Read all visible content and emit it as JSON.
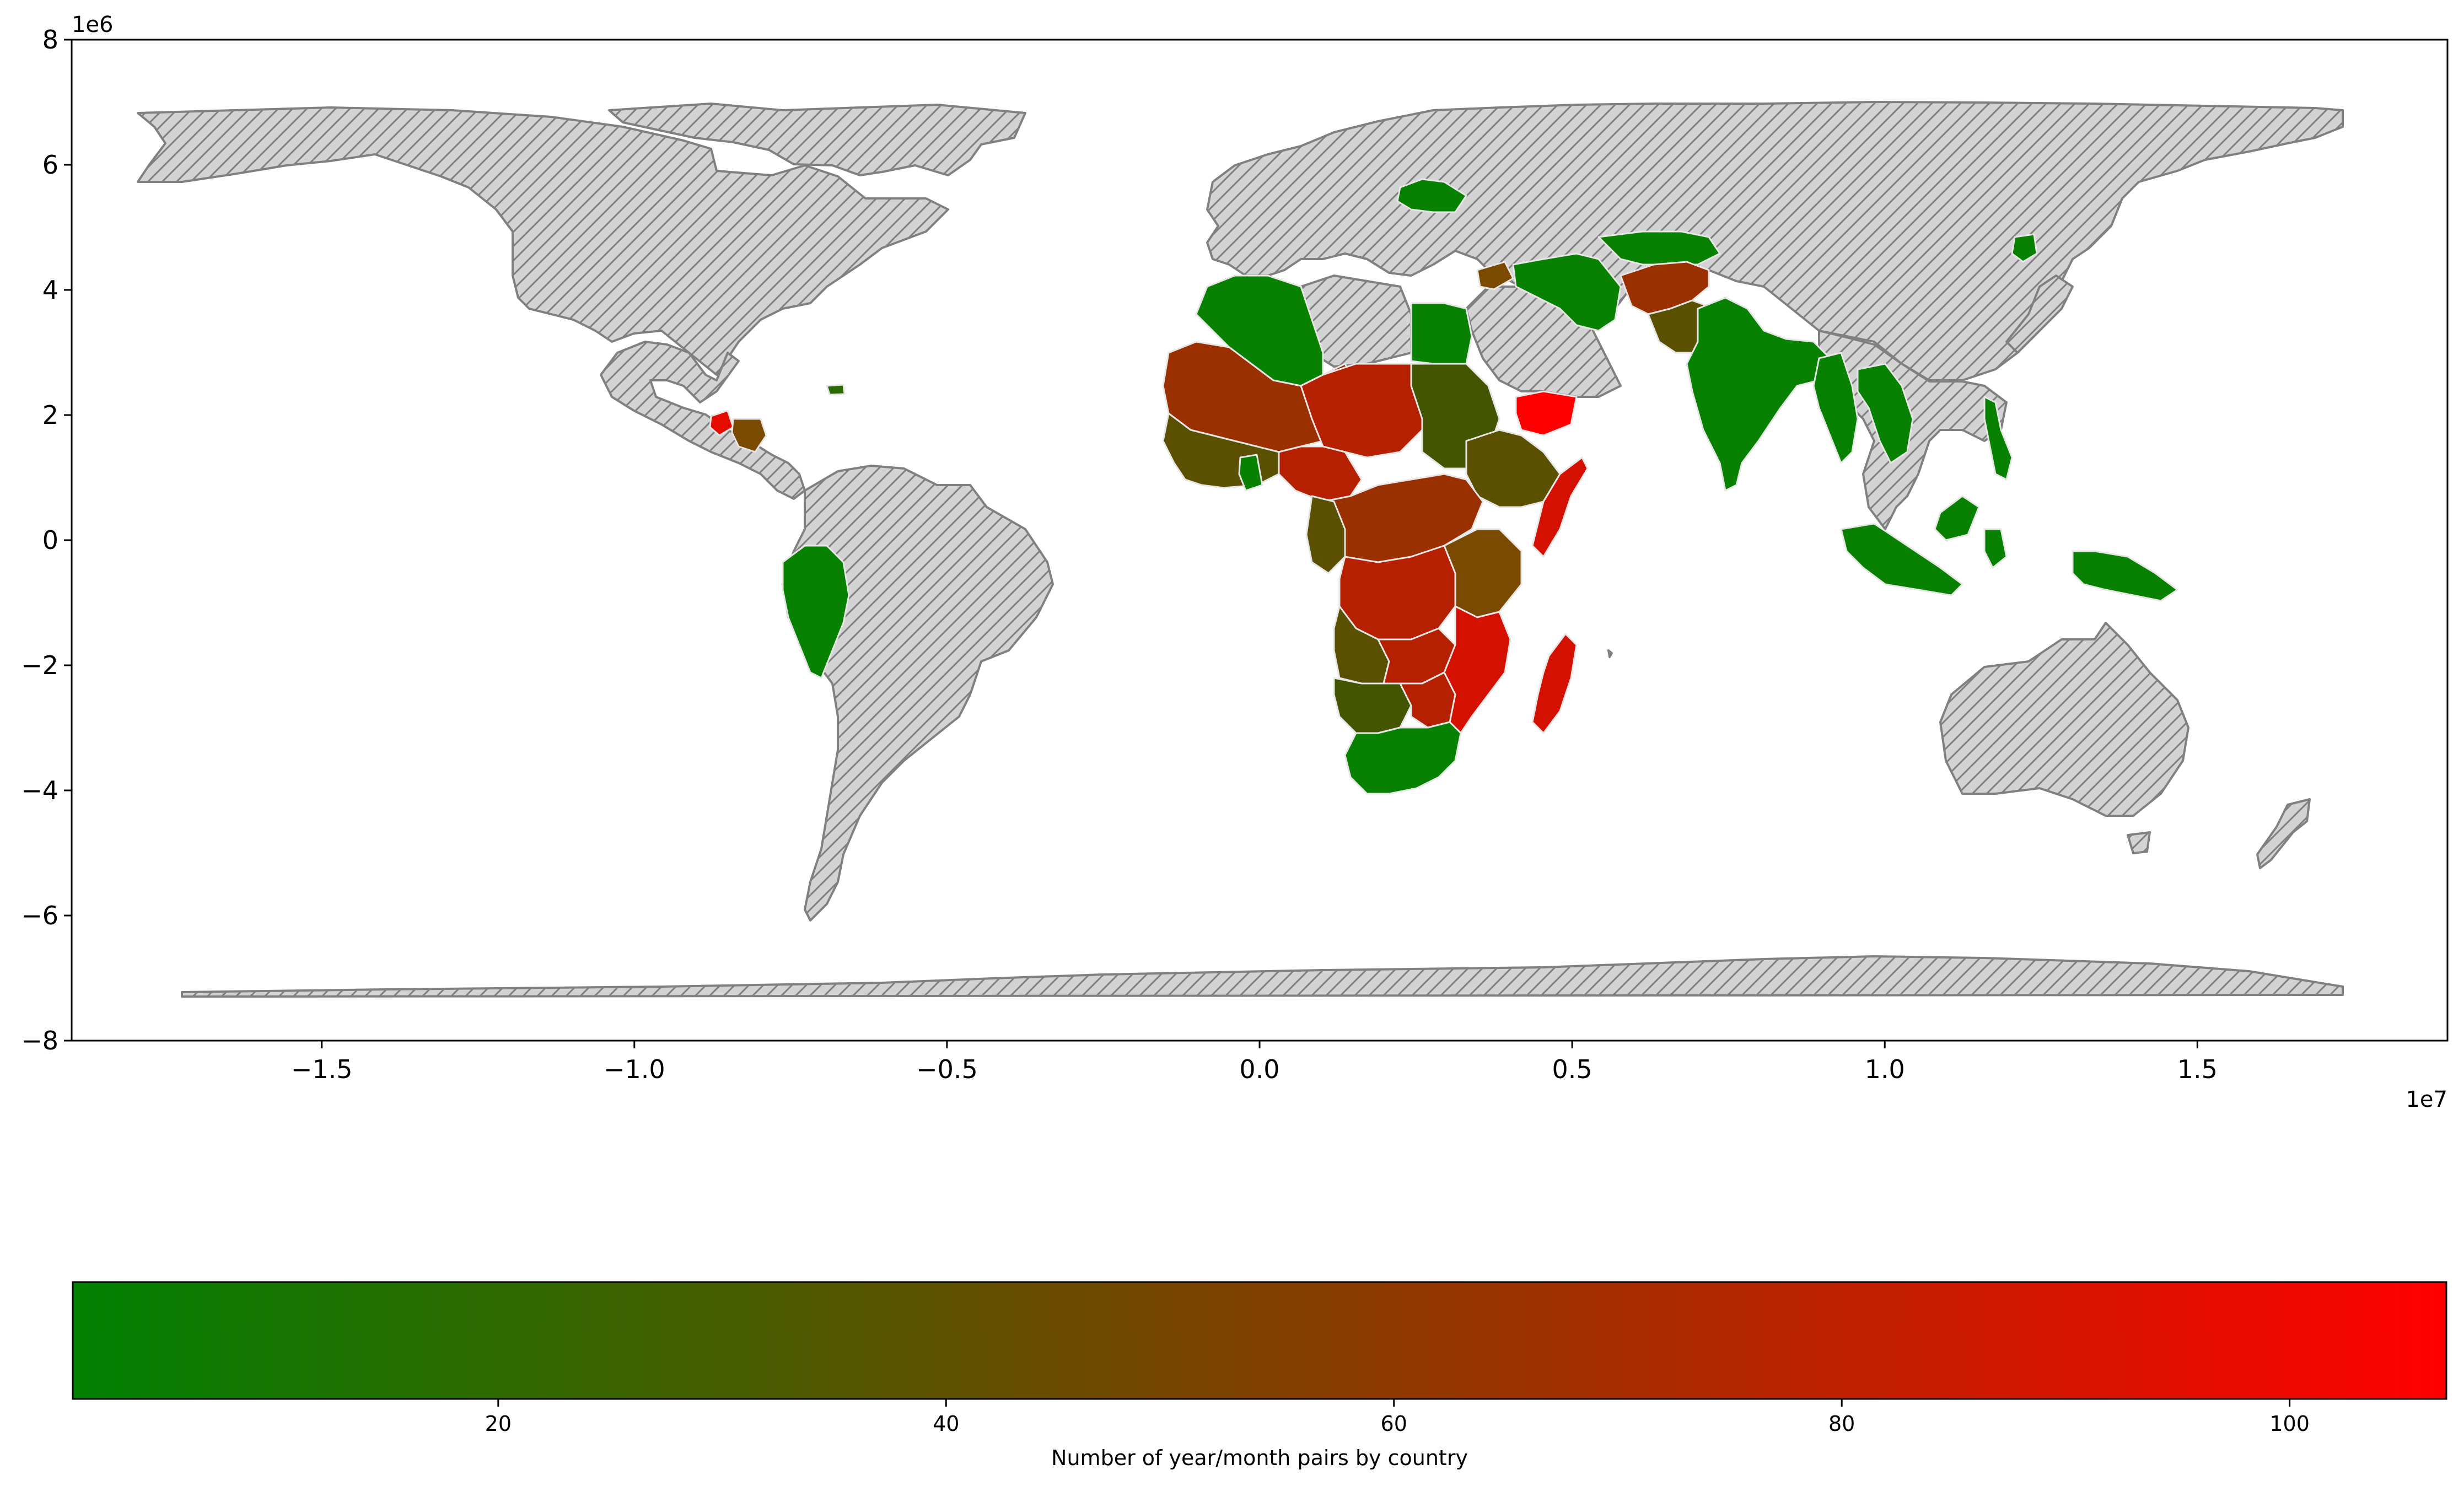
{
  "map": {
    "x_axis": {
      "range": [
        -19000000,
        19000000
      ],
      "ticks": [
        {
          "value": -15000000,
          "label": "−1.5"
        },
        {
          "value": -10000000,
          "label": "−1.0"
        },
        {
          "value": -5000000,
          "label": "−0.5"
        },
        {
          "value": 0,
          "label": "0.0"
        },
        {
          "value": 5000000,
          "label": "0.5"
        },
        {
          "value": 10000000,
          "label": "1.0"
        },
        {
          "value": 15000000,
          "label": "1.5"
        }
      ],
      "offset_label": "1e7"
    },
    "y_axis": {
      "range": [
        -8000000,
        8000000
      ],
      "ticks": [
        {
          "value": 8000000,
          "label": "8"
        },
        {
          "value": 6000000,
          "label": "6"
        },
        {
          "value": 4000000,
          "label": "4"
        },
        {
          "value": 2000000,
          "label": "2"
        },
        {
          "value": 0,
          "label": "0"
        },
        {
          "value": -2000000,
          "label": "−2"
        },
        {
          "value": -4000000,
          "label": "−4"
        },
        {
          "value": -6000000,
          "label": "−6"
        },
        {
          "value": -8000000,
          "label": "−8"
        }
      ],
      "offset_label": "1e6"
    },
    "no_data_style": {
      "fill": "#d3d3d3",
      "edge": "#808080",
      "hatch": "///"
    },
    "data_edge_color": "#e6e6e6"
  },
  "colorbar": {
    "label": "Number of year/month pairs by country",
    "range": [
      1,
      107
    ],
    "colors": [
      "#008000",
      "#ff0000"
    ],
    "ticks": [
      {
        "value": 20,
        "label": "20"
      },
      {
        "value": 40,
        "label": "40"
      },
      {
        "value": 60,
        "label": "60"
      },
      {
        "value": 80,
        "label": "80"
      },
      {
        "value": 100,
        "label": "100"
      }
    ]
  }
}
